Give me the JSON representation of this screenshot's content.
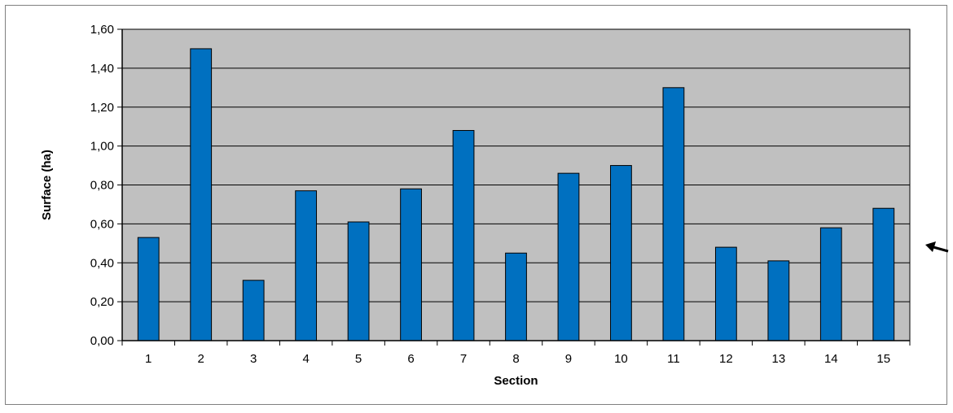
{
  "chart_data": {
    "type": "bar",
    "title": "",
    "xlabel": "Section",
    "ylabel": "Surface (ha)",
    "categories": [
      "1",
      "2",
      "3",
      "4",
      "5",
      "6",
      "7",
      "8",
      "9",
      "10",
      "11",
      "12",
      "13",
      "14",
      "15"
    ],
    "values": [
      0.53,
      1.5,
      0.31,
      0.77,
      0.61,
      0.78,
      1.08,
      0.45,
      0.86,
      0.9,
      1.3,
      0.48,
      0.41,
      0.58,
      0.68
    ],
    "ylim": [
      0,
      1.6
    ],
    "yticks": [
      "0,00",
      "0,20",
      "0,40",
      "0,60",
      "0,80",
      "1,00",
      "1,20",
      "1,40",
      "1,60"
    ],
    "grid": true,
    "legend": "none",
    "colors": {
      "bar": "#0070C0",
      "plot_background": "#C0C0C0",
      "gridline": "#000000"
    }
  },
  "annotations": {
    "arrow_icon": "arrow-pointing-left-down"
  }
}
